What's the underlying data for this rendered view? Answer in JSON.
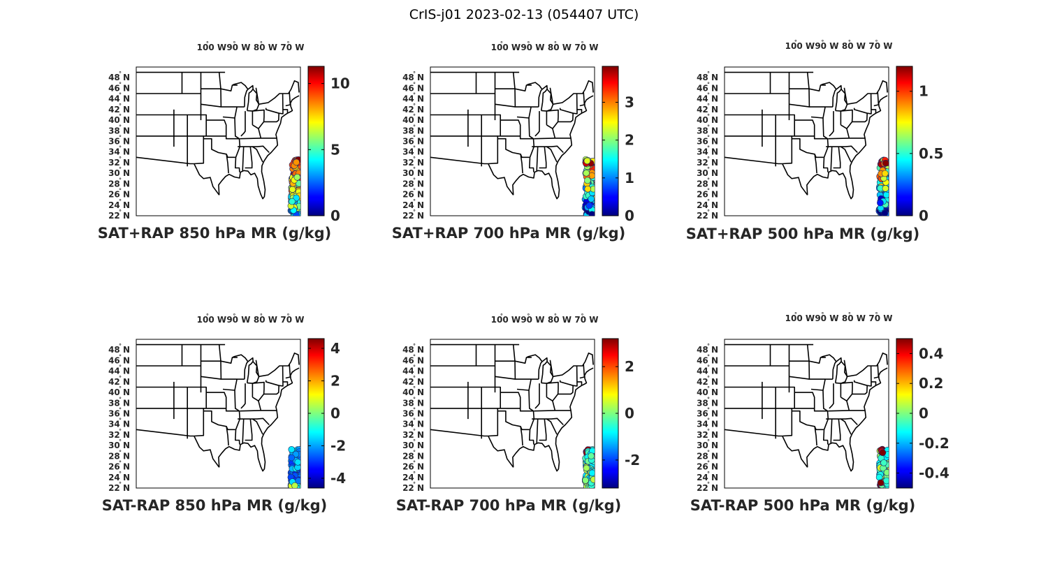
{
  "figure": {
    "title": "CrIS-j01 2023-02-13 (054407 UTC)"
  },
  "axes": {
    "lon_labels": [
      "100",
      "90",
      "80",
      "70"
    ],
    "lon_suffix": "W",
    "lat_labels": [
      "48",
      "46",
      "44",
      "42",
      "40",
      "38",
      "36",
      "34",
      "32",
      "30",
      "28",
      "26",
      "24",
      "22"
    ],
    "lat_suffix": "N",
    "degree_symbol": "°"
  },
  "colors": {
    "colormap": "jet",
    "map_lines": "#000000",
    "text": "#262626"
  },
  "panels": [
    {
      "title": "SAT+RAP 850 hPa MR (g/kg)",
      "clim": [
        0,
        11.3
      ],
      "cbar_ticks": [
        "0",
        "5",
        "10"
      ],
      "cbar_values": [
        0,
        5,
        10
      ],
      "swath_mode": "total_high"
    },
    {
      "title": "SAT+RAP 700 hPa MR (g/kg)",
      "clim": [
        0,
        3.95
      ],
      "cbar_ticks": [
        "0",
        "1",
        "2",
        "3"
      ],
      "cbar_values": [
        0,
        1,
        2,
        3
      ],
      "swath_mode": "total_mixed"
    },
    {
      "title": "SAT+RAP 500 hPa MR (g/kg)",
      "clim": [
        0,
        1.2
      ],
      "cbar_ticks": [
        "0",
        "0.5",
        "1"
      ],
      "cbar_values": [
        0,
        0.5,
        1
      ],
      "swath_mode": "total_mixed"
    },
    {
      "title": "SAT-RAP 850 hPa MR (g/kg)",
      "clim": [
        -4.6,
        4.6
      ],
      "cbar_ticks": [
        "-4",
        "-2",
        "0",
        "2",
        "4"
      ],
      "cbar_values": [
        -4,
        -2,
        0,
        2,
        4
      ],
      "swath_mode": "diff_low"
    },
    {
      "title": "SAT-RAP 700 hPa MR (g/kg)",
      "clim": [
        -3.2,
        3.2
      ],
      "cbar_ticks": [
        "-2",
        "0",
        "2"
      ],
      "cbar_values": [
        -2,
        0,
        2
      ],
      "swath_mode": "diff_mid"
    },
    {
      "title": "SAT-RAP 500 hPa MR (g/kg)",
      "clim": [
        -0.5,
        0.5
      ],
      "cbar_ticks": [
        "-0.4",
        "-0.2",
        "0",
        "0.2",
        "0.4"
      ],
      "cbar_values": [
        -0.4,
        -0.2,
        0,
        0.2,
        0.4
      ],
      "swath_mode": "diff_mid"
    }
  ]
}
